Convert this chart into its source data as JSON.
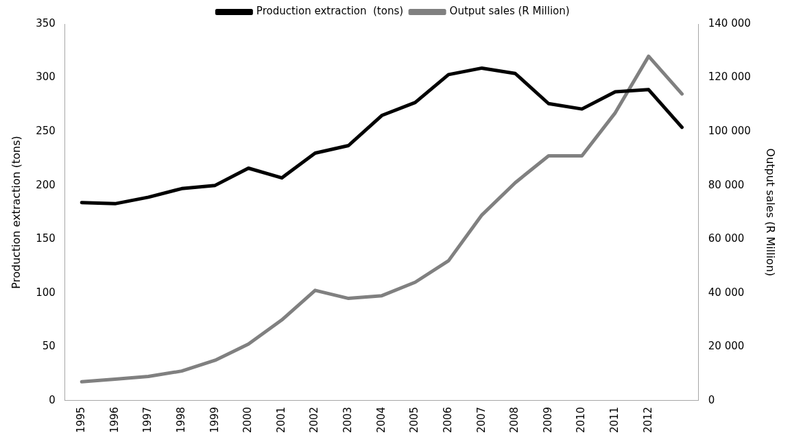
{
  "chart_data": {
    "type": "line",
    "ylabel": "Production extraction (tons)",
    "y2label": "Output sales (R Million)",
    "categories": [
      "1995",
      "1996",
      "1997",
      "1998",
      "1999",
      "2000",
      "2001",
      "2002",
      "2003",
      "2004",
      "2005",
      "2006",
      "2007",
      "2008",
      "2009",
      "2010",
      "2011",
      "2012",
      null
    ],
    "series": [
      {
        "name": "Production extraction  (tons)",
        "color": "#000000",
        "values": [
          184,
          183,
          189,
          197,
          200,
          216,
          207,
          230,
          237,
          265,
          277,
          303,
          309,
          304,
          276,
          271,
          287,
          289,
          254
        ]
      },
      {
        "name": "Output sales (R Million)",
        "color": "#808080",
        "axis": "y2",
        "values": [
          7000,
          8000,
          9000,
          11000,
          15000,
          21000,
          30000,
          41000,
          38000,
          39000,
          44000,
          52000,
          69000,
          81000,
          91000,
          91000,
          107000,
          128000,
          114000
        ]
      }
    ],
    "ylim": [
      0,
      350
    ],
    "yticks": [
      0,
      50,
      100,
      150,
      200,
      250,
      300,
      350
    ],
    "y2lim": [
      0,
      140000
    ],
    "y2ticks": [
      {
        "value": 0,
        "label": "0"
      },
      {
        "value": 20000,
        "label": "20 000"
      },
      {
        "value": 40000,
        "label": "40 000"
      },
      {
        "value": 60000,
        "label": "60 000"
      },
      {
        "value": 80000,
        "label": "80 000"
      },
      {
        "value": 100000,
        "label": "100 000"
      },
      {
        "value": 120000,
        "label": "120 000"
      },
      {
        "value": 140000,
        "label": "140 000"
      }
    ],
    "grid": false,
    "legend": "top",
    "marker": "none",
    "line_style": "solid"
  }
}
